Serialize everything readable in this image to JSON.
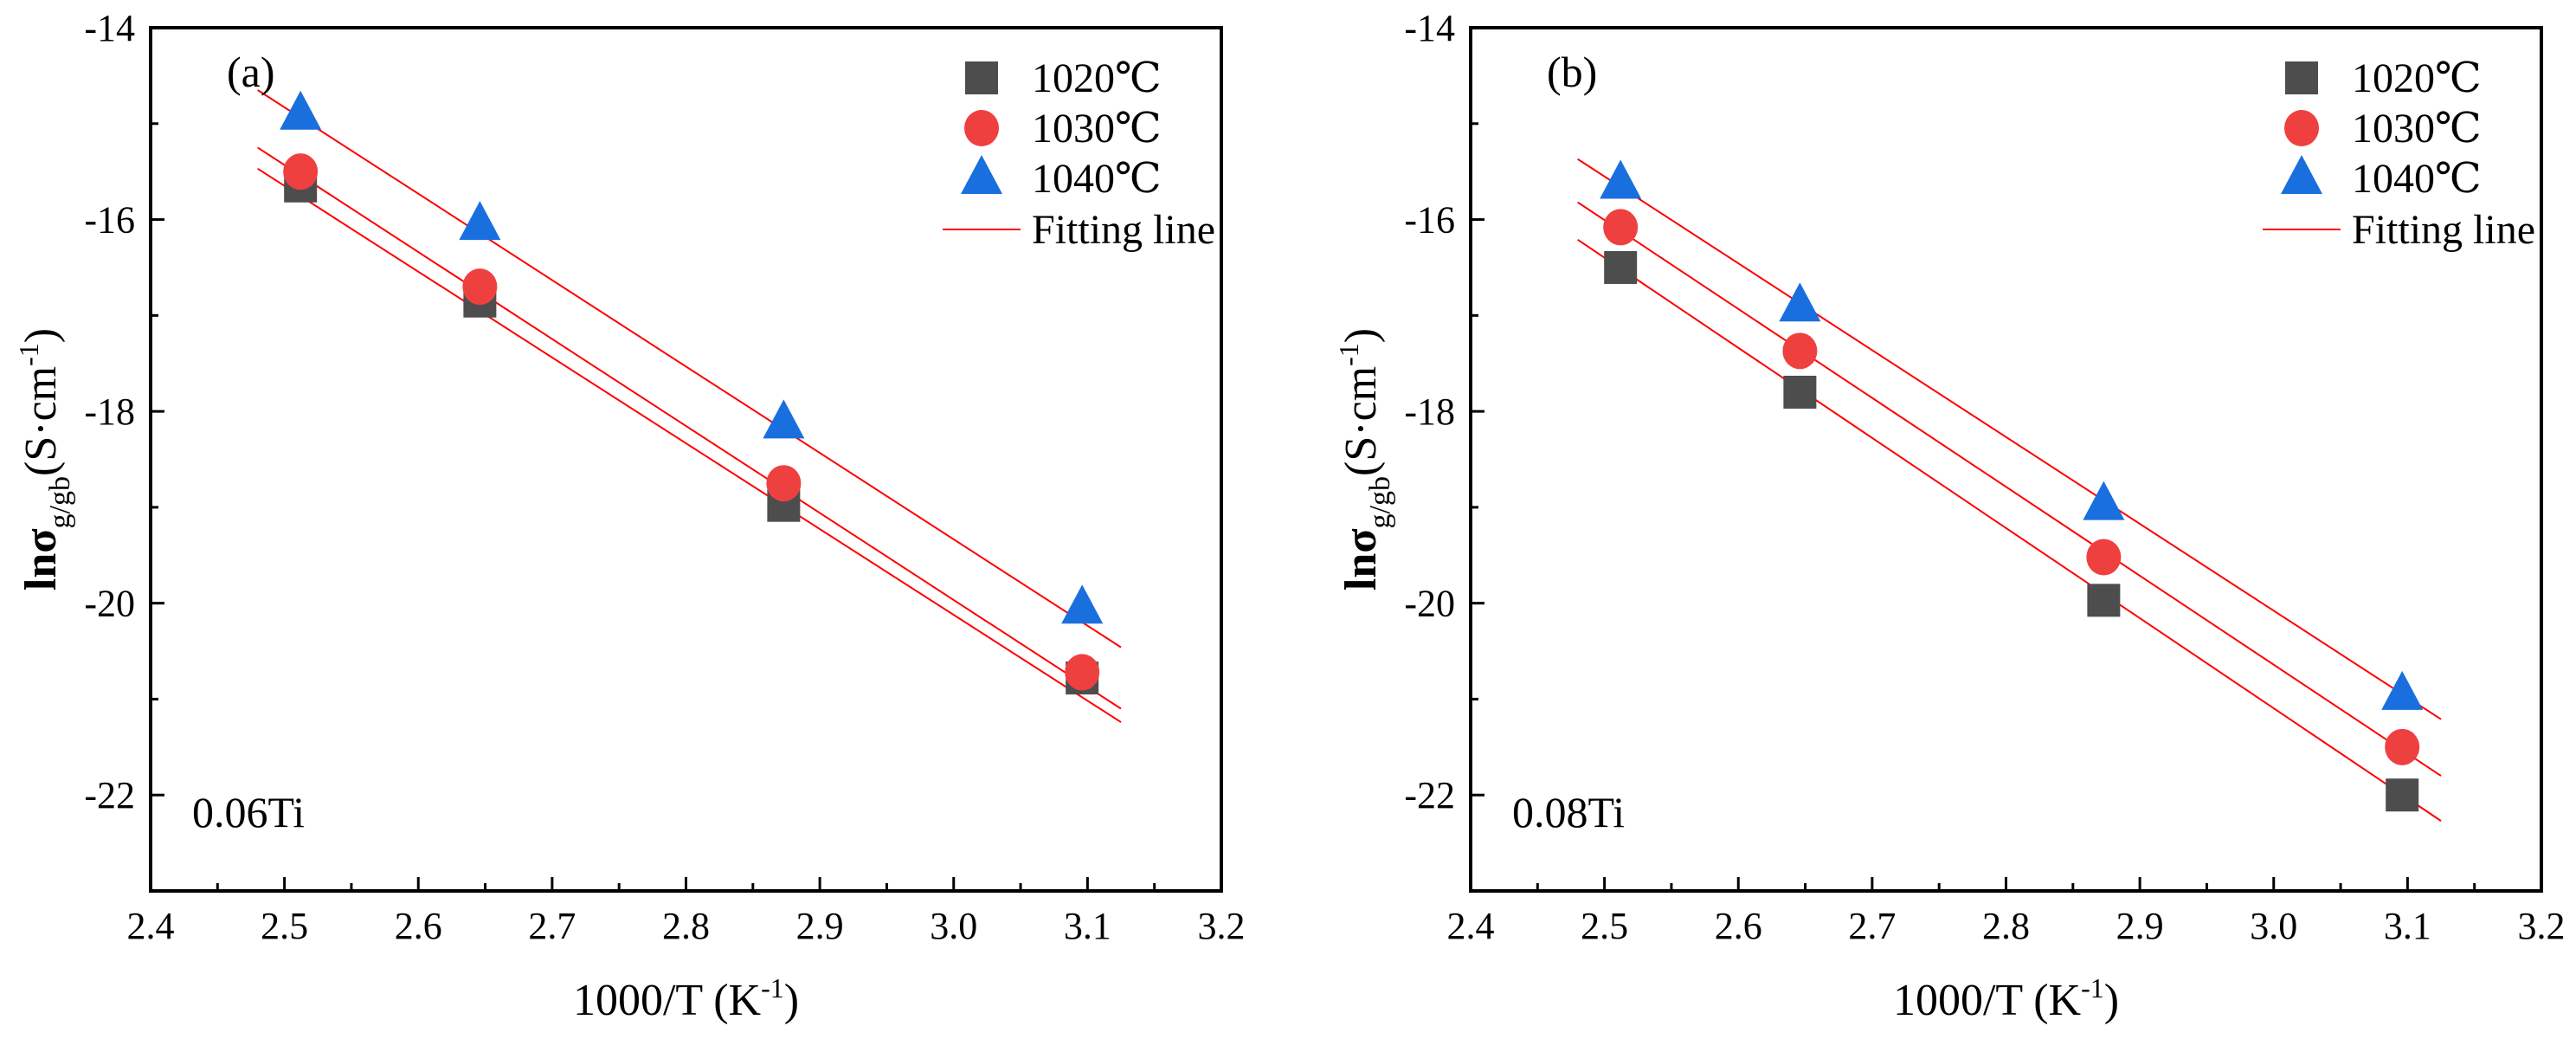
{
  "chart_data": [
    {
      "type": "scatter",
      "panel_label": "(a)",
      "annotation": "0.06Ti",
      "xlabel_main": "1000/T (K",
      "xlabel_sup": "-1",
      "xlabel_end": ")",
      "ylabel_main": "lnσ",
      "ylabel_sub": "g/gb",
      "ylabel_unit": "(S·cm",
      "ylabel_sup": "-1",
      "ylabel_end": ")",
      "xlim": [
        2.4,
        3.2
      ],
      "ylim": [
        -23,
        -14
      ],
      "xticks": [
        "2.4",
        "2.5",
        "2.6",
        "2.7",
        "2.8",
        "2.9",
        "3.0",
        "3.1",
        "3.2"
      ],
      "yticks": [
        "-14",
        "-16",
        "-18",
        "-20",
        "-22"
      ],
      "legend": [
        "1020℃",
        "1030℃",
        "1040℃",
        "Fitting line"
      ],
      "legend_position": "top-right",
      "x": [
        2.512,
        2.646,
        2.873,
        3.096
      ],
      "series": [
        {
          "name": "1020℃",
          "marker": "square",
          "color": "#4d4d4d",
          "values": [
            -15.65,
            -16.85,
            -18.98,
            -20.78
          ],
          "fit": [
            [
              2.48,
              -15.47
            ],
            [
              3.125,
              -21.24
            ]
          ]
        },
        {
          "name": "1030℃",
          "marker": "circle",
          "color": "#ef4040",
          "values": [
            -15.5,
            -16.7,
            -18.75,
            -20.72
          ],
          "fit": [
            [
              2.48,
              -15.25
            ],
            [
              3.125,
              -21.1
            ]
          ]
        },
        {
          "name": "1040℃",
          "marker": "triangle",
          "color": "#1a6fdf",
          "values": [
            -14.9,
            -16.05,
            -18.12,
            -20.05
          ],
          "fit": [
            [
              2.48,
              -14.65
            ],
            [
              3.125,
              -20.46
            ]
          ]
        }
      ],
      "fit_color": "#ff0000"
    },
    {
      "type": "scatter",
      "panel_label": "(b)",
      "annotation": "0.08Ti",
      "xlabel_main": "1000/T (K",
      "xlabel_sup": "-1",
      "xlabel_end": ")",
      "ylabel_main": "lnσ",
      "ylabel_sub": "g/gb",
      "ylabel_unit": "(S·cm",
      "ylabel_sup": "-1",
      "ylabel_end": ")",
      "xlim": [
        2.4,
        3.2
      ],
      "ylim": [
        -23,
        -14
      ],
      "xticks": [
        "2.4",
        "2.5",
        "2.6",
        "2.7",
        "2.8",
        "2.9",
        "3.0",
        "3.1",
        "3.2"
      ],
      "yticks": [
        "-14",
        "-16",
        "-18",
        "-20",
        "-22"
      ],
      "legend": [
        "1020℃",
        "1030℃",
        "1040℃",
        "Fitting line"
      ],
      "legend_position": "top-right",
      "x": [
        2.512,
        2.646,
        2.873,
        3.096
      ],
      "series": [
        {
          "name": "1020℃",
          "marker": "square",
          "color": "#4d4d4d",
          "values": [
            -16.5,
            -17.8,
            -19.97,
            -22.0
          ],
          "fit": [
            [
              2.48,
              -16.21
            ],
            [
              3.125,
              -22.27
            ]
          ]
        },
        {
          "name": "1030℃",
          "marker": "circle",
          "color": "#ef4040",
          "values": [
            -16.08,
            -17.37,
            -19.52,
            -21.5
          ],
          "fit": [
            [
              2.48,
              -15.82
            ],
            [
              3.125,
              -21.8
            ]
          ]
        },
        {
          "name": "1040℃",
          "marker": "triangle",
          "color": "#1a6fdf",
          "values": [
            -15.62,
            -16.9,
            -18.97,
            -20.95
          ],
          "fit": [
            [
              2.48,
              -15.37
            ],
            [
              3.125,
              -21.21
            ]
          ]
        }
      ],
      "fit_color": "#ff0000"
    }
  ]
}
